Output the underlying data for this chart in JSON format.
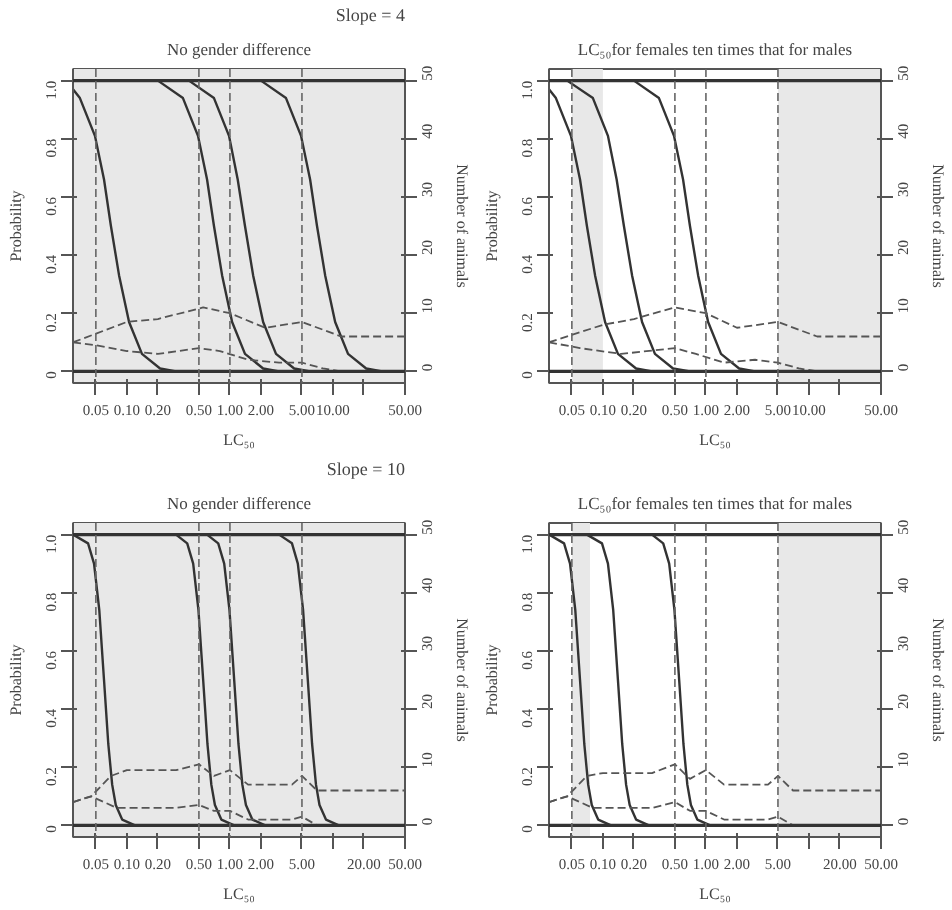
{
  "chart_data": [
    {
      "type": "line",
      "title": "No gender difference",
      "xlabel": "LC₅₀",
      "ylabel": "Probability",
      "y2label": "Number of animals",
      "annotations": [
        "Slope = 4"
      ],
      "log": "x",
      "grid": false,
      "xlim": [
        0.03,
        50
      ],
      "ylim": [
        -0.04,
        1.04
      ],
      "y2lim": [
        -2,
        52
      ],
      "xticks": [
        {
          "value": 0.05,
          "label": "0.05"
        },
        {
          "value": 0.1,
          "label": "0.10"
        },
        {
          "value": 0.2,
          "label": "0.20"
        },
        {
          "value": 0.5,
          "label": "0.50"
        },
        {
          "value": 1,
          "label": "1.00"
        },
        {
          "value": 2,
          "label": "2.00"
        },
        {
          "value": 5,
          "label": "5.00"
        },
        {
          "value": 10,
          "label": "10.00"
        },
        {
          "value": 20,
          "label": null
        },
        {
          "value": 50,
          "label": "50.00"
        }
      ],
      "yticks": [
        {
          "value": 0,
          "label": "0"
        },
        {
          "value": 0.2,
          "label": "0.2"
        },
        {
          "value": 0.4,
          "label": "0.4"
        },
        {
          "value": 0.6,
          "label": "0.6"
        },
        {
          "value": 0.8,
          "label": "0.8"
        },
        {
          "value": 1,
          "label": "1.0"
        }
      ],
      "y2ticks": [
        {
          "value": 0,
          "label": "0"
        },
        {
          "value": 10,
          "label": "10"
        },
        {
          "value": 20,
          "label": "20"
        },
        {
          "value": 30,
          "label": "30"
        },
        {
          "value": 40,
          "label": "40"
        },
        {
          "value": 50,
          "label": "50"
        }
      ],
      "bands": [
        {
          "axis": "x",
          "from": 0.03,
          "to": 50,
          "color": "#e8e8e8"
        }
      ],
      "ref_lines": [
        {
          "axis": "y",
          "value": 1,
          "line_style": "solid",
          "color": "#333333"
        },
        {
          "axis": "y",
          "value": 0,
          "line_style": "solid",
          "color": "#333333"
        },
        {
          "axis": "x",
          "value": 0.05,
          "line_style": "dashed",
          "color": "#666666"
        },
        {
          "axis": "x",
          "value": 0.5,
          "line_style": "dashed",
          "color": "#666666"
        },
        {
          "axis": "x",
          "value": 1,
          "line_style": "dashed",
          "color": "#666666"
        },
        {
          "axis": "x",
          "value": 5,
          "line_style": "dashed",
          "color": "#666666"
        }
      ],
      "series": [
        {
          "color": "#333333",
          "line_style": "solid",
          "x": [
            0.03,
            0.035,
            0.049,
            0.06,
            0.07,
            0.084,
            0.105,
            0.14,
            0.21,
            0.3
          ],
          "values": [
            0.97,
            0.94,
            0.81,
            0.66,
            0.5,
            0.33,
            0.17,
            0.06,
            0.01,
            0
          ]
        },
        {
          "color": "#333333",
          "line_style": "solid",
          "x": [
            0.2,
            0.35,
            0.49,
            0.6,
            0.7,
            0.84,
            1.05,
            1.4,
            2.1,
            3
          ],
          "values": [
            1,
            0.94,
            0.81,
            0.66,
            0.5,
            0.33,
            0.17,
            0.06,
            0.01,
            0
          ]
        },
        {
          "color": "#333333",
          "line_style": "solid",
          "x": [
            0.4,
            0.7,
            0.98,
            1.19,
            1.4,
            1.68,
            2.1,
            2.8,
            4.2,
            6
          ],
          "values": [
            1,
            0.94,
            0.81,
            0.66,
            0.5,
            0.33,
            0.17,
            0.06,
            0.01,
            0
          ]
        },
        {
          "color": "#333333",
          "line_style": "solid",
          "x": [
            2,
            3.5,
            4.9,
            6,
            7,
            8.4,
            10.5,
            14,
            21,
            30
          ],
          "values": [
            1,
            0.94,
            0.81,
            0.66,
            0.5,
            0.33,
            0.17,
            0.06,
            0.01,
            0
          ]
        },
        {
          "color": "#555555",
          "line_style": "dashed",
          "axis": "y2",
          "x": [
            0.03,
            0.1,
            0.2,
            0.55,
            1,
            2.2,
            5,
            12,
            50
          ],
          "values": [
            5,
            8.5,
            9,
            11,
            10,
            7.5,
            8.5,
            6,
            6
          ]
        },
        {
          "color": "#555555",
          "line_style": "dashed",
          "axis": "y2",
          "x": [
            0.03,
            0.05,
            0.1,
            0.2,
            0.5,
            0.8,
            1.5,
            3,
            5,
            8,
            12,
            50
          ],
          "values": [
            5,
            4.5,
            3.5,
            3,
            4,
            3.5,
            2,
            1.5,
            1.5,
            0.5,
            0,
            0
          ]
        }
      ]
    },
    {
      "type": "line",
      "title": "LC₅₀for females ten times that for males",
      "xlabel": "LC₅₀",
      "ylabel": "Probability",
      "y2label": "Number of animals",
      "log": "x",
      "grid": false,
      "xlim": [
        0.03,
        50
      ],
      "ylim": [
        -0.04,
        1.04
      ],
      "y2lim": [
        -2,
        52
      ],
      "xticks": [
        {
          "value": 0.05,
          "label": "0.05"
        },
        {
          "value": 0.1,
          "label": "0.10"
        },
        {
          "value": 0.2,
          "label": "0.20"
        },
        {
          "value": 0.5,
          "label": "0.50"
        },
        {
          "value": 1,
          "label": "1.00"
        },
        {
          "value": 2,
          "label": "2.00"
        },
        {
          "value": 5,
          "label": "5.00"
        },
        {
          "value": 10,
          "label": "10.00"
        },
        {
          "value": 20,
          "label": null
        },
        {
          "value": 50,
          "label": "50.00"
        }
      ],
      "yticks": [
        {
          "value": 0,
          "label": "0"
        },
        {
          "value": 0.2,
          "label": "0.2"
        },
        {
          "value": 0.4,
          "label": "0.4"
        },
        {
          "value": 0.6,
          "label": "0.6"
        },
        {
          "value": 0.8,
          "label": "0.8"
        },
        {
          "value": 1,
          "label": "1.0"
        }
      ],
      "y2ticks": [
        {
          "value": 0,
          "label": "0"
        },
        {
          "value": 10,
          "label": "10"
        },
        {
          "value": 20,
          "label": "20"
        },
        {
          "value": 30,
          "label": "30"
        },
        {
          "value": 40,
          "label": "40"
        },
        {
          "value": 50,
          "label": "50"
        }
      ],
      "bands": [
        {
          "axis": "x",
          "from": 0.05,
          "to": 0.1,
          "color": "#e8e8e8"
        },
        {
          "axis": "x",
          "from": 5,
          "to": 50,
          "color": "#e8e8e8"
        }
      ],
      "ref_lines": [
        {
          "axis": "y",
          "value": 1,
          "line_style": "solid",
          "color": "#333333"
        },
        {
          "axis": "y",
          "value": 0,
          "line_style": "solid",
          "color": "#333333"
        },
        {
          "axis": "x",
          "value": 0.05,
          "line_style": "dashed",
          "color": "#666666"
        },
        {
          "axis": "x",
          "value": 0.5,
          "line_style": "dashed",
          "color": "#666666"
        },
        {
          "axis": "x",
          "value": 1,
          "line_style": "dashed",
          "color": "#666666"
        },
        {
          "axis": "x",
          "value": 5,
          "line_style": "dashed",
          "color": "#666666"
        }
      ],
      "series": [
        {
          "color": "#333333",
          "line_style": "solid",
          "x": [
            0.03,
            0.035,
            0.049,
            0.06,
            0.07,
            0.084,
            0.105,
            0.14,
            0.21,
            0.3
          ],
          "values": [
            0.97,
            0.94,
            0.81,
            0.66,
            0.5,
            0.33,
            0.17,
            0.06,
            0.01,
            0
          ]
        },
        {
          "color": "#333333",
          "line_style": "solid",
          "x": [
            0.045,
            0.08,
            0.112,
            0.136,
            0.16,
            0.192,
            0.24,
            0.32,
            0.48,
            0.7
          ],
          "values": [
            1,
            0.94,
            0.81,
            0.66,
            0.5,
            0.33,
            0.17,
            0.06,
            0.01,
            0
          ]
        },
        {
          "color": "#333333",
          "line_style": "solid",
          "x": [
            0.2,
            0.35,
            0.49,
            0.6,
            0.7,
            0.84,
            1.05,
            1.4,
            2.1,
            3
          ],
          "values": [
            1,
            0.94,
            0.81,
            0.66,
            0.5,
            0.33,
            0.17,
            0.06,
            0.01,
            0
          ]
        },
        {
          "color": "#555555",
          "line_style": "dashed",
          "axis": "y2",
          "x": [
            0.03,
            0.1,
            0.2,
            0.5,
            1,
            2,
            5,
            12,
            50
          ],
          "values": [
            5,
            8,
            9,
            11,
            10,
            7.5,
            8.5,
            6,
            6
          ]
        },
        {
          "color": "#555555",
          "line_style": "dashed",
          "axis": "y2",
          "x": [
            0.03,
            0.06,
            0.15,
            0.5,
            0.8,
            1.5,
            3,
            5,
            8,
            12,
            50
          ],
          "values": [
            5,
            4,
            3,
            4,
            3,
            1.5,
            2,
            1.5,
            0.5,
            0,
            0
          ]
        }
      ]
    },
    {
      "type": "line",
      "title": "No gender difference",
      "xlabel": "LC₅₀",
      "ylabel": "Probability",
      "y2label": "Number of animals",
      "annotations": [
        "Slope = 10"
      ],
      "log": "x",
      "grid": false,
      "xlim": [
        0.03,
        50
      ],
      "ylim": [
        -0.04,
        1.04
      ],
      "y2lim": [
        -2,
        52
      ],
      "xticks": [
        {
          "value": 0.05,
          "label": "0.05"
        },
        {
          "value": 0.1,
          "label": "0.10"
        },
        {
          "value": 0.2,
          "label": "0.20"
        },
        {
          "value": 0.5,
          "label": "0.50"
        },
        {
          "value": 1,
          "label": "1.00"
        },
        {
          "value": 2,
          "label": "2.00"
        },
        {
          "value": 5,
          "label": "5.00"
        },
        {
          "value": 10,
          "label": null
        },
        {
          "value": 20,
          "label": "20.00"
        },
        {
          "value": 50,
          "label": "50.00"
        }
      ],
      "yticks": [
        {
          "value": 0,
          "label": "0"
        },
        {
          "value": 0.2,
          "label": "0.2"
        },
        {
          "value": 0.4,
          "label": "0.4"
        },
        {
          "value": 0.6,
          "label": "0.6"
        },
        {
          "value": 0.8,
          "label": "0.8"
        },
        {
          "value": 1,
          "label": "1.0"
        }
      ],
      "y2ticks": [
        {
          "value": 0,
          "label": "0"
        },
        {
          "value": 10,
          "label": "10"
        },
        {
          "value": 20,
          "label": "20"
        },
        {
          "value": 30,
          "label": "30"
        },
        {
          "value": 40,
          "label": "40"
        },
        {
          "value": 50,
          "label": "50"
        }
      ],
      "bands": [
        {
          "axis": "x",
          "from": 0.03,
          "to": 50,
          "color": "#e8e8e8"
        }
      ],
      "ref_lines": [
        {
          "axis": "y",
          "value": 1,
          "line_style": "solid",
          "color": "#333333"
        },
        {
          "axis": "y",
          "value": 0,
          "line_style": "solid",
          "color": "#333333"
        },
        {
          "axis": "x",
          "value": 0.05,
          "line_style": "dashed",
          "color": "#666666"
        },
        {
          "axis": "x",
          "value": 0.5,
          "line_style": "dashed",
          "color": "#666666"
        },
        {
          "axis": "x",
          "value": 1,
          "line_style": "dashed",
          "color": "#666666"
        },
        {
          "axis": "x",
          "value": 5,
          "line_style": "dashed",
          "color": "#666666"
        }
      ],
      "series": [
        {
          "color": "#333333",
          "line_style": "solid",
          "x": [
            0.03,
            0.042,
            0.048,
            0.054,
            0.06,
            0.066,
            0.072,
            0.078,
            0.09,
            0.12
          ],
          "values": [
            1,
            0.97,
            0.9,
            0.74,
            0.5,
            0.28,
            0.14,
            0.07,
            0.02,
            0
          ]
        },
        {
          "color": "#333333",
          "line_style": "solid",
          "x": [
            0.3,
            0.385,
            0.44,
            0.495,
            0.55,
            0.605,
            0.66,
            0.715,
            0.825,
            1.1
          ],
          "values": [
            1,
            0.97,
            0.9,
            0.74,
            0.5,
            0.28,
            0.14,
            0.07,
            0.02,
            0
          ]
        },
        {
          "color": "#333333",
          "line_style": "solid",
          "x": [
            0.6,
            0.77,
            0.88,
            0.99,
            1.1,
            1.21,
            1.32,
            1.43,
            1.65,
            2.2
          ],
          "values": [
            1,
            0.97,
            0.9,
            0.74,
            0.5,
            0.28,
            0.14,
            0.07,
            0.02,
            0
          ]
        },
        {
          "color": "#333333",
          "line_style": "solid",
          "x": [
            3,
            4,
            4.56,
            5.13,
            5.7,
            6.27,
            6.84,
            7.4,
            8.55,
            11.4
          ],
          "values": [
            1,
            0.97,
            0.9,
            0.74,
            0.5,
            0.28,
            0.14,
            0.07,
            0.02,
            0
          ]
        },
        {
          "color": "#555555",
          "line_style": "dashed",
          "axis": "y2",
          "x": [
            0.03,
            0.045,
            0.07,
            0.1,
            0.3,
            0.5,
            0.7,
            1,
            1.5,
            4,
            5,
            7,
            50
          ],
          "values": [
            4,
            5,
            8.5,
            9.5,
            9.5,
            10.5,
            8.5,
            9.5,
            7,
            7,
            8.5,
            6,
            6
          ]
        },
        {
          "color": "#555555",
          "line_style": "dashed",
          "axis": "y2",
          "x": [
            0.03,
            0.045,
            0.08,
            0.3,
            0.5,
            0.7,
            1,
            1.5,
            4,
            5,
            7,
            50
          ],
          "values": [
            4,
            5,
            3,
            3,
            3.5,
            2.5,
            2.5,
            1,
            1,
            1.5,
            0,
            0
          ]
        }
      ]
    },
    {
      "type": "line",
      "title": "LC₅₀for females ten times that for males",
      "xlabel": "LC₅₀",
      "ylabel": "Probability",
      "y2label": "Number of animals",
      "log": "x",
      "grid": false,
      "xlim": [
        0.03,
        50
      ],
      "ylim": [
        -0.04,
        1.04
      ],
      "y2lim": [
        -2,
        52
      ],
      "xticks": [
        {
          "value": 0.05,
          "label": "0.05"
        },
        {
          "value": 0.1,
          "label": "0.10"
        },
        {
          "value": 0.2,
          "label": "0.20"
        },
        {
          "value": 0.5,
          "label": "0.50"
        },
        {
          "value": 1,
          "label": "1.00"
        },
        {
          "value": 2,
          "label": "2.00"
        },
        {
          "value": 5,
          "label": "5.00"
        },
        {
          "value": 10,
          "label": null
        },
        {
          "value": 20,
          "label": "20.00"
        },
        {
          "value": 50,
          "label": "50.00"
        }
      ],
      "yticks": [
        {
          "value": 0,
          "label": "0"
        },
        {
          "value": 0.2,
          "label": "0.2"
        },
        {
          "value": 0.4,
          "label": "0.4"
        },
        {
          "value": 0.6,
          "label": "0.6"
        },
        {
          "value": 0.8,
          "label": "0.8"
        },
        {
          "value": 1,
          "label": "1.0"
        }
      ],
      "y2ticks": [
        {
          "value": 0,
          "label": "0"
        },
        {
          "value": 10,
          "label": "10"
        },
        {
          "value": 20,
          "label": "20"
        },
        {
          "value": 30,
          "label": "30"
        },
        {
          "value": 40,
          "label": "40"
        },
        {
          "value": 50,
          "label": "50"
        }
      ],
      "bands": [
        {
          "axis": "x",
          "from": 0.05,
          "to": 0.075,
          "color": "#e8e8e8"
        },
        {
          "axis": "x",
          "from": 5,
          "to": 50,
          "color": "#e8e8e8"
        }
      ],
      "ref_lines": [
        {
          "axis": "y",
          "value": 1,
          "line_style": "solid",
          "color": "#333333"
        },
        {
          "axis": "y",
          "value": 0,
          "line_style": "solid",
          "color": "#333333"
        },
        {
          "axis": "x",
          "value": 0.05,
          "line_style": "dashed",
          "color": "#666666"
        },
        {
          "axis": "x",
          "value": 0.5,
          "line_style": "dashed",
          "color": "#666666"
        },
        {
          "axis": "x",
          "value": 1,
          "line_style": "dashed",
          "color": "#666666"
        },
        {
          "axis": "x",
          "value": 5,
          "line_style": "dashed",
          "color": "#666666"
        }
      ],
      "series": [
        {
          "color": "#333333",
          "line_style": "solid",
          "x": [
            0.03,
            0.042,
            0.048,
            0.054,
            0.06,
            0.066,
            0.072,
            0.078,
            0.09,
            0.12
          ],
          "values": [
            1,
            0.97,
            0.9,
            0.74,
            0.5,
            0.28,
            0.14,
            0.07,
            0.02,
            0
          ]
        },
        {
          "color": "#333333",
          "line_style": "solid",
          "x": [
            0.07,
            0.098,
            0.112,
            0.126,
            0.14,
            0.154,
            0.168,
            0.182,
            0.21,
            0.28
          ],
          "values": [
            1,
            0.97,
            0.9,
            0.74,
            0.5,
            0.28,
            0.14,
            0.07,
            0.02,
            0
          ]
        },
        {
          "color": "#333333",
          "line_style": "solid",
          "x": [
            0.3,
            0.385,
            0.44,
            0.495,
            0.55,
            0.605,
            0.66,
            0.715,
            0.825,
            1.1
          ],
          "values": [
            1,
            0.97,
            0.9,
            0.74,
            0.5,
            0.28,
            0.14,
            0.07,
            0.02,
            0
          ]
        },
        {
          "color": "#555555",
          "line_style": "dashed",
          "axis": "y2",
          "x": [
            0.03,
            0.045,
            0.07,
            0.1,
            0.3,
            0.5,
            0.7,
            1,
            1.5,
            4,
            5,
            7,
            50
          ],
          "values": [
            4,
            5,
            8.5,
            9,
            9,
            10.5,
            8,
            9.5,
            7,
            7,
            8.5,
            6,
            6
          ]
        },
        {
          "color": "#555555",
          "line_style": "dashed",
          "axis": "y2",
          "x": [
            0.03,
            0.045,
            0.08,
            0.3,
            0.5,
            0.7,
            1,
            1.5,
            4,
            5,
            7,
            50
          ],
          "values": [
            4,
            5,
            3,
            3,
            4,
            2.5,
            2.5,
            1,
            1,
            1.5,
            0,
            0
          ]
        }
      ]
    }
  ]
}
